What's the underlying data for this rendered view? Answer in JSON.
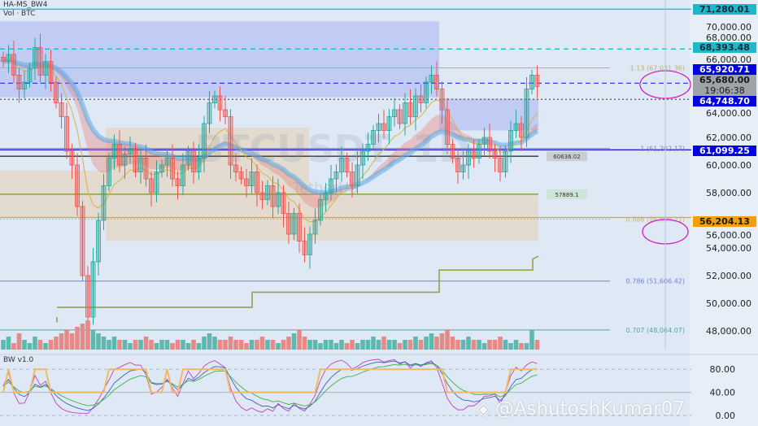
{
  "legend": {
    "indicator": "HA-MS_BW4",
    "volume": "Vol · BTC",
    "oscillator": "BW v1.0"
  },
  "symbol_watermark": "BTCUSDT, 1D",
  "symbol_desc_watermark": "TetherUS",
  "author_watermark": "@AshutoshKumar07",
  "colors": {
    "up": "#26a69a",
    "down": "#ef5350",
    "background": "#dfe9f5",
    "cyan": "#1fb8c9",
    "blue": "#0000e6",
    "orange": "#f59e0b"
  },
  "price_tags": [
    {
      "label": "71,280.01",
      "value": 71280.01,
      "color": "#1fb8c9",
      "text": "#1a2a3a"
    },
    {
      "label": "68,393.48",
      "value": 68393.48,
      "color": "#1fb8c9",
      "text": "#1a2a3a"
    },
    {
      "label": "65,920.71",
      "value": 65920.71,
      "color": "#0000e6",
      "text": "#ffffff"
    },
    {
      "label": "65,680.00",
      "value": 65680.0,
      "color": "#9ea3a8",
      "text": "#1a1a1a",
      "sub": "19:06:38"
    },
    {
      "label": "64,748.70",
      "value": 64748.7,
      "color": "#0000e6",
      "text": "#ffffff"
    },
    {
      "label": "61,099.25",
      "value": 61099.25,
      "color": "#0000e6",
      "text": "#ffffff"
    },
    {
      "label": "56,204.13",
      "value": 56204.13,
      "color": "#f59e0b",
      "text": "#1a1a1a"
    }
  ],
  "fib_labels": [
    {
      "label": "1.13 (67,031.36)",
      "value": 67031.36,
      "color": "#b5b36a"
    },
    {
      "label": "1 (61,202.17)",
      "value": 61202.17,
      "color": "#8080c0"
    },
    {
      "label": "0.886 (56,090.21)",
      "value": 56090.21,
      "color": "#c9b36a"
    },
    {
      "label": "0.786 (51,606.42)",
      "value": 51606.42,
      "color": "#6b83d6"
    },
    {
      "label": "0.707 (48,064.07)",
      "value": 48064.07,
      "color": "#4aa89a"
    }
  ],
  "line_labels": [
    {
      "label": "60636.02",
      "value": 60636.02
    },
    {
      "label": "57889.1",
      "value": 57889.1
    }
  ],
  "chart_data": [
    {
      "type": "candlestick",
      "title": "",
      "y_ticks": [
        "70,000.00",
        "68,000.00",
        "66,000.00",
        "64,000.00",
        "62,000.00",
        "60,000.00",
        "58,000.00",
        "56,000.00",
        "54,000.00",
        "52,000.00",
        "50,000.00",
        "48,000.00"
      ],
      "y_tick_values": [
        70000,
        68000,
        66000,
        64000,
        62000,
        60000,
        58000,
        56000,
        54000,
        52000,
        50000,
        48000
      ],
      "ylim": [
        47000,
        72000
      ],
      "close": [
        67500,
        68000,
        66500,
        65500,
        66000,
        67000,
        68500,
        66500,
        67500,
        66000,
        64500,
        63500,
        61000,
        60000,
        57000,
        52000,
        49000,
        53000,
        56000,
        58500,
        60500,
        61500,
        60000,
        60800,
        61200,
        59500,
        60500,
        59000,
        58000,
        59500,
        60000,
        60500,
        59000,
        58500,
        60000,
        61000,
        59500,
        60500,
        63000,
        64500,
        65000,
        64000,
        63500,
        60000,
        59500,
        59000,
        58500,
        59500,
        58000,
        57500,
        58500,
        57000,
        58000,
        56500,
        55000,
        56500,
        54500,
        53500,
        55000,
        56000,
        57500,
        58000,
        59000,
        59500,
        60500,
        59500,
        58500,
        60000,
        61000,
        61500,
        62500,
        63000,
        62500,
        63500,
        64000,
        63000,
        64500,
        63500,
        65000,
        64500,
        66000,
        66500,
        65500,
        64000,
        61500,
        60500,
        59500,
        60000,
        61000,
        60500,
        61500,
        62000,
        61000,
        60500,
        59500,
        61000,
        62500,
        63000,
        62000,
        65500,
        66500,
        65680
      ],
      "volume": [
        3,
        4,
        2,
        5,
        3,
        2,
        4,
        3,
        2,
        3,
        4,
        5,
        6,
        5,
        7,
        8,
        9,
        6,
        5,
        4,
        3,
        4,
        3,
        3,
        2,
        3,
        3,
        4,
        3,
        2,
        3,
        3,
        2,
        3,
        3,
        2,
        3,
        2,
        4,
        5,
        4,
        3,
        3,
        4,
        3,
        3,
        2,
        3,
        3,
        4,
        3,
        3,
        2,
        3,
        4,
        5,
        6,
        4,
        3,
        3,
        2,
        3,
        3,
        2,
        3,
        2,
        3,
        2,
        3,
        3,
        4,
        3,
        4,
        3,
        3,
        2,
        3,
        3,
        4,
        3,
        4,
        5,
        4,
        5,
        6,
        4,
        3,
        3,
        4,
        3,
        3,
        2,
        3,
        3,
        4,
        3,
        2,
        3,
        2,
        2,
        6,
        3
      ]
    },
    {
      "type": "line",
      "title": "BW v1.0",
      "y_ticks": [
        "80.00",
        "40.00",
        "0.00"
      ],
      "y_tick_values": [
        80,
        40,
        0
      ],
      "ylim": [
        -5,
        100
      ]
    }
  ]
}
